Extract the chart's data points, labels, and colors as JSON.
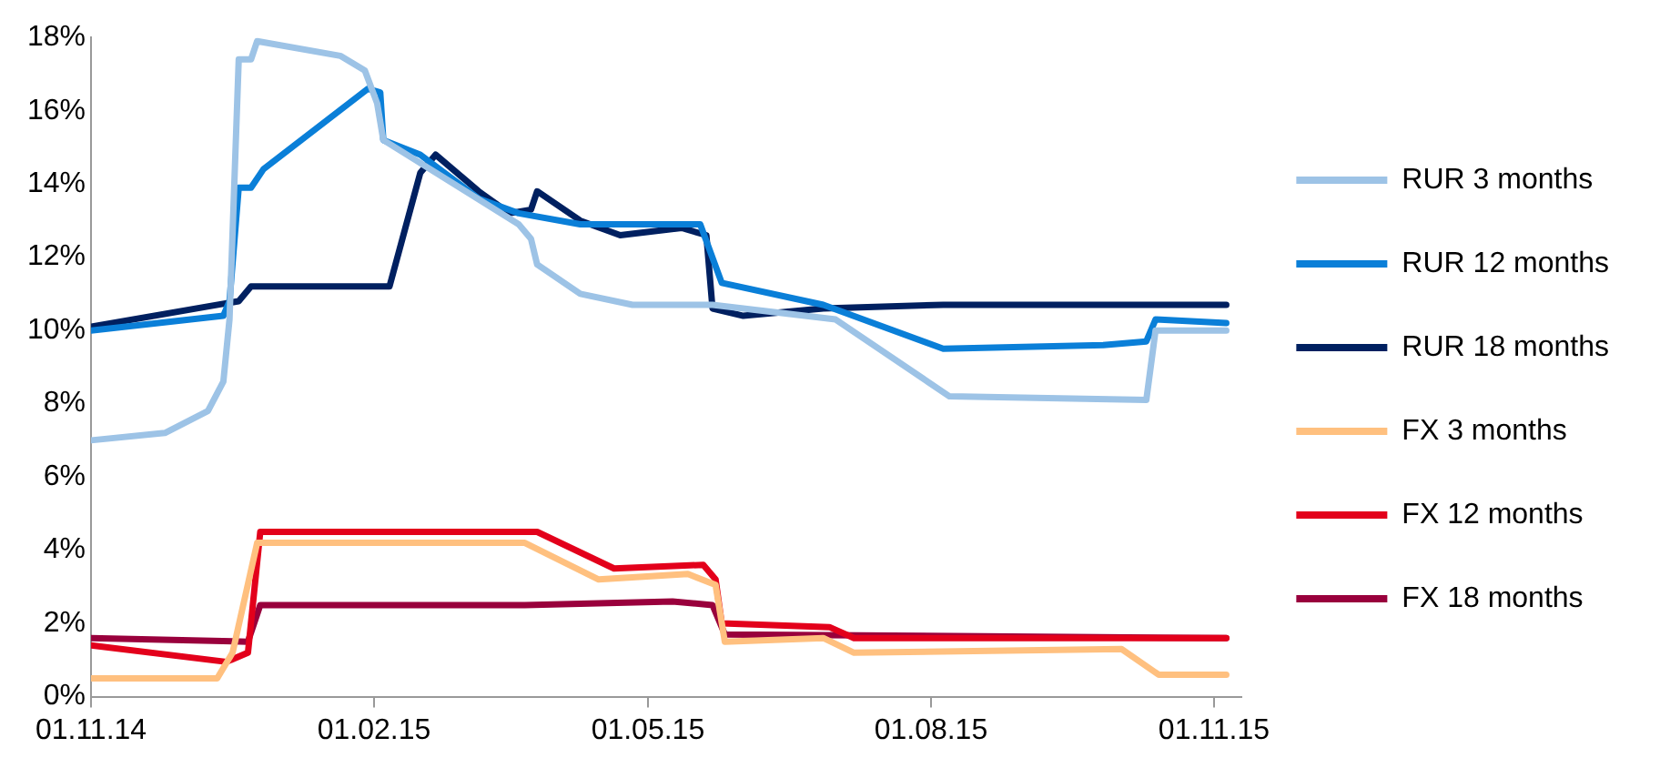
{
  "chart_data": {
    "type": "line",
    "xlim": [
      "2014-11-01",
      "2015-11-10"
    ],
    "xticks": [
      {
        "value": "2014-11-01",
        "label": "01.11.14"
      },
      {
        "value": "2015-02-01",
        "label": "01.02.15"
      },
      {
        "value": "2015-05-01",
        "label": "01.05.15"
      },
      {
        "value": "2015-08-01",
        "label": "01.08.15"
      },
      {
        "value": "2015-11-01",
        "label": "01.11.15"
      }
    ],
    "ylim": [
      0,
      18
    ],
    "yticks": [
      {
        "value": 0,
        "label": "0%"
      },
      {
        "value": 2,
        "label": "2%"
      },
      {
        "value": 4,
        "label": "4%"
      },
      {
        "value": 6,
        "label": "6%"
      },
      {
        "value": 8,
        "label": "8%"
      },
      {
        "value": 10,
        "label": "10%"
      },
      {
        "value": 12,
        "label": "12%"
      },
      {
        "value": 14,
        "label": "14%"
      },
      {
        "value": 16,
        "label": "16%"
      },
      {
        "value": 18,
        "label": "18%"
      }
    ],
    "grid": false,
    "legend": "right",
    "marker": "none",
    "line_style": "solid",
    "series": [
      {
        "name": "RUR 3 months",
        "color": "#9dc3e6",
        "x": [
          "2014-11-01",
          "2014-11-25",
          "2014-12-09",
          "2014-12-14",
          "2014-12-16",
          "2014-12-19",
          "2014-12-23",
          "2014-12-25",
          "2015-01-21",
          "2015-01-29",
          "2015-02-02",
          "2015-02-04",
          "2015-03-20",
          "2015-03-24",
          "2015-03-26",
          "2015-04-09",
          "2015-04-26",
          "2015-05-22",
          "2015-07-01",
          "2015-08-07",
          "2015-10-10",
          "2015-10-13",
          "2015-11-05"
        ],
        "values": [
          7.0,
          7.2,
          7.8,
          8.6,
          10.3,
          17.4,
          17.4,
          17.9,
          17.5,
          17.1,
          16.2,
          15.2,
          12.9,
          12.5,
          11.8,
          11.0,
          10.7,
          10.7,
          10.3,
          8.2,
          8.1,
          10.0,
          10.0
        ]
      },
      {
        "name": "RUR 12 months",
        "color": "#0a7fd8",
        "x": [
          "2014-11-01",
          "2014-12-14",
          "2014-12-16",
          "2014-12-19",
          "2014-12-23",
          "2014-12-27",
          "2015-01-30",
          "2015-02-03",
          "2015-02-04",
          "2015-02-16",
          "2015-03-07",
          "2015-03-20",
          "2015-04-09",
          "2015-05-18",
          "2015-05-25",
          "2015-06-27",
          "2015-08-05",
          "2015-09-26",
          "2015-10-10",
          "2015-10-13",
          "2015-11-05"
        ],
        "values": [
          10.0,
          10.4,
          10.8,
          13.9,
          13.9,
          14.4,
          16.6,
          16.5,
          15.2,
          14.8,
          13.6,
          13.2,
          12.9,
          12.9,
          11.3,
          10.7,
          9.5,
          9.6,
          9.7,
          10.3,
          10.2
        ]
      },
      {
        "name": "RUR 18 months",
        "color": "#002060",
        "x": [
          "2014-11-01",
          "2014-12-19",
          "2014-12-23",
          "2015-02-06",
          "2015-02-16",
          "2015-02-21",
          "2015-03-07",
          "2015-03-17",
          "2015-03-24",
          "2015-03-26",
          "2015-04-09",
          "2015-04-22",
          "2015-05-12",
          "2015-05-20",
          "2015-05-22",
          "2015-06-01",
          "2015-06-27",
          "2015-08-05",
          "2015-11-05"
        ],
        "values": [
          10.1,
          10.8,
          11.2,
          11.2,
          14.3,
          14.8,
          13.8,
          13.2,
          13.3,
          13.8,
          13.0,
          12.6,
          12.8,
          12.6,
          10.6,
          10.4,
          10.6,
          10.7,
          10.7
        ]
      },
      {
        "name": "FX 3 months",
        "color": "#ffc07f",
        "x": [
          "2014-11-01",
          "2014-12-12",
          "2014-12-17",
          "2014-12-25",
          "2015-03-22",
          "2015-04-15",
          "2015-05-14",
          "2015-05-23",
          "2015-05-26",
          "2015-06-27",
          "2015-07-07",
          "2015-10-02",
          "2015-10-14",
          "2015-11-05"
        ],
        "values": [
          0.5,
          0.5,
          1.2,
          4.2,
          4.2,
          3.2,
          3.35,
          3.05,
          1.5,
          1.6,
          1.2,
          1.3,
          0.6,
          0.6
        ]
      },
      {
        "name": "FX 12 months",
        "color": "#e3001b",
        "x": [
          "2014-11-01",
          "2014-12-15",
          "2014-12-22",
          "2014-12-26",
          "2015-03-26",
          "2015-04-20",
          "2015-05-19",
          "2015-05-23",
          "2015-05-25",
          "2015-06-29",
          "2015-07-07",
          "2015-11-05"
        ],
        "values": [
          1.4,
          0.95,
          1.2,
          4.5,
          4.5,
          3.5,
          3.6,
          3.2,
          2.0,
          1.9,
          1.6,
          1.6
        ]
      },
      {
        "name": "FX 18 months",
        "color": "#99003c",
        "x": [
          "2014-11-01",
          "2014-12-22",
          "2014-12-26",
          "2015-03-22",
          "2015-05-09",
          "2015-05-22",
          "2015-05-26",
          "2015-11-05"
        ],
        "values": [
          1.6,
          1.5,
          2.5,
          2.5,
          2.6,
          2.5,
          1.7,
          1.6
        ]
      }
    ]
  }
}
